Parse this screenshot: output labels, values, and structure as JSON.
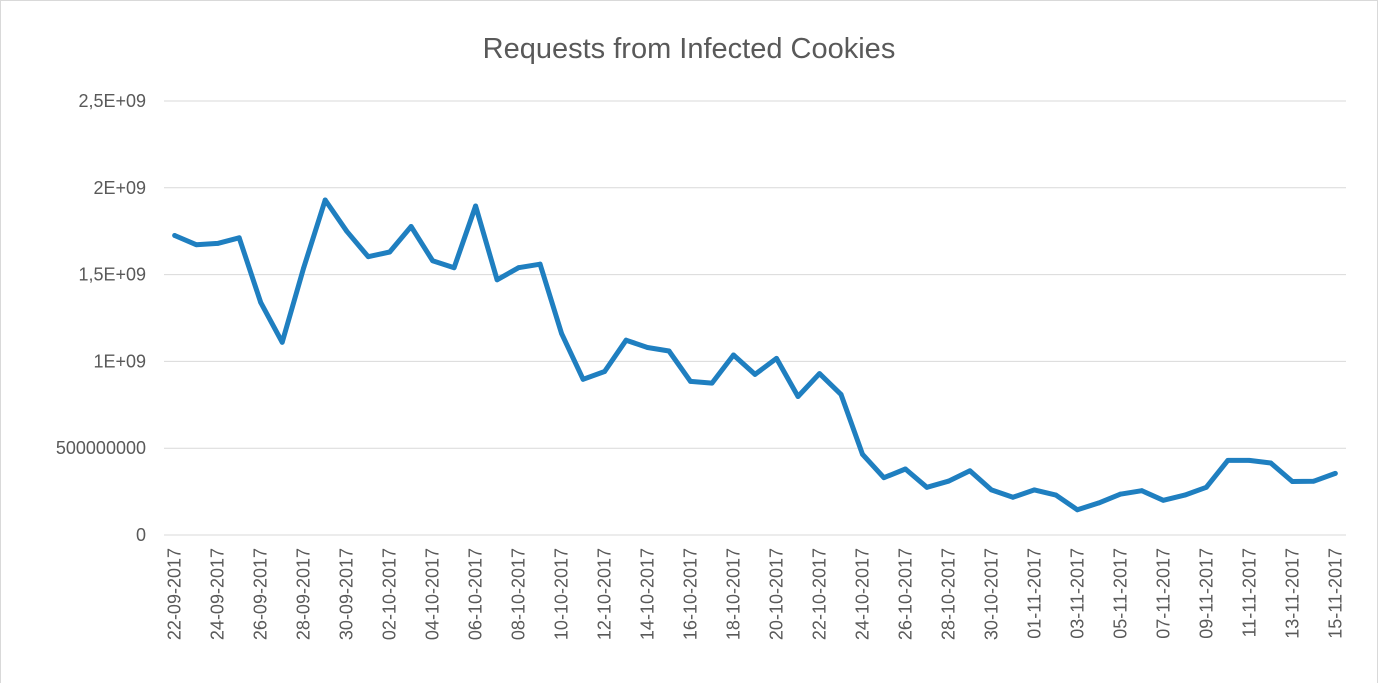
{
  "chart_data": {
    "type": "line",
    "title": "Requests from Infected Cookies",
    "xlabel": "",
    "ylabel": "",
    "ylim": [
      0,
      2500000000
    ],
    "y_ticks": [
      {
        "value": 0,
        "label": "0"
      },
      {
        "value": 500000000,
        "label": "500000000"
      },
      {
        "value": 1000000000,
        "label": "1E+09"
      },
      {
        "value": 1500000000,
        "label": "1,5E+09"
      },
      {
        "value": 2000000000,
        "label": "2E+09"
      },
      {
        "value": 2500000000,
        "label": "2,5E+09"
      }
    ],
    "grid": true,
    "legend": "none",
    "x": [
      "22-09-2017",
      "23-09-2017",
      "24-09-2017",
      "25-09-2017",
      "26-09-2017",
      "27-09-2017",
      "28-09-2017",
      "29-09-2017",
      "30-09-2017",
      "01-10-2017",
      "02-10-2017",
      "03-10-2017",
      "04-10-2017",
      "05-10-2017",
      "06-10-2017",
      "07-10-2017",
      "08-10-2017",
      "09-10-2017",
      "10-10-2017",
      "11-10-2017",
      "12-10-2017",
      "13-10-2017",
      "14-10-2017",
      "15-10-2017",
      "16-10-2017",
      "17-10-2017",
      "18-10-2017",
      "19-10-2017",
      "20-10-2017",
      "21-10-2017",
      "22-10-2017",
      "23-10-2017",
      "24-10-2017",
      "25-10-2017",
      "26-10-2017",
      "27-10-2017",
      "28-10-2017",
      "29-10-2017",
      "30-10-2017",
      "31-10-2017",
      "01-11-2017",
      "02-11-2017",
      "03-11-2017",
      "04-11-2017",
      "05-11-2017",
      "06-11-2017",
      "07-11-2017",
      "08-11-2017",
      "09-11-2017",
      "10-11-2017",
      "11-11-2017",
      "12-11-2017",
      "13-11-2017",
      "14-11-2017",
      "15-11-2017"
    ],
    "x_tick_labels": [
      "22-09-2017",
      "24-09-2017",
      "26-09-2017",
      "28-09-2017",
      "30-09-2017",
      "02-10-2017",
      "04-10-2017",
      "06-10-2017",
      "08-10-2017",
      "10-10-2017",
      "12-10-2017",
      "14-10-2017",
      "16-10-2017",
      "18-10-2017",
      "20-10-2017",
      "22-10-2017",
      "24-10-2017",
      "26-10-2017",
      "28-10-2017",
      "30-10-2017",
      "01-11-2017",
      "03-11-2017",
      "05-11-2017",
      "07-11-2017",
      "09-11-2017",
      "11-11-2017",
      "13-11-2017",
      "15-11-2017"
    ],
    "series": [
      {
        "color": "#1f7fc0",
        "values": [
          1725000000,
          1672000000,
          1680000000,
          1712000000,
          1340000000,
          1110000000,
          1540000000,
          1930000000,
          1750000000,
          1603000000,
          1630000000,
          1777000000,
          1580000000,
          1540000000,
          1895000000,
          1470000000,
          1540000000,
          1560000000,
          1160000000,
          897000000,
          942000000,
          1122000000,
          1080000000,
          1060000000,
          885000000,
          875000000,
          1037000000,
          925000000,
          1017000000,
          798000000,
          930000000,
          810000000,
          465000000,
          330000000,
          380000000,
          275000000,
          310000000,
          370000000,
          260000000,
          217000000,
          260000000,
          230000000,
          145000000,
          185000000,
          235000000,
          255000000,
          200000000,
          230000000,
          275000000,
          430000000,
          430000000,
          415000000,
          308000000,
          310000000,
          355000000
        ]
      }
    ]
  }
}
